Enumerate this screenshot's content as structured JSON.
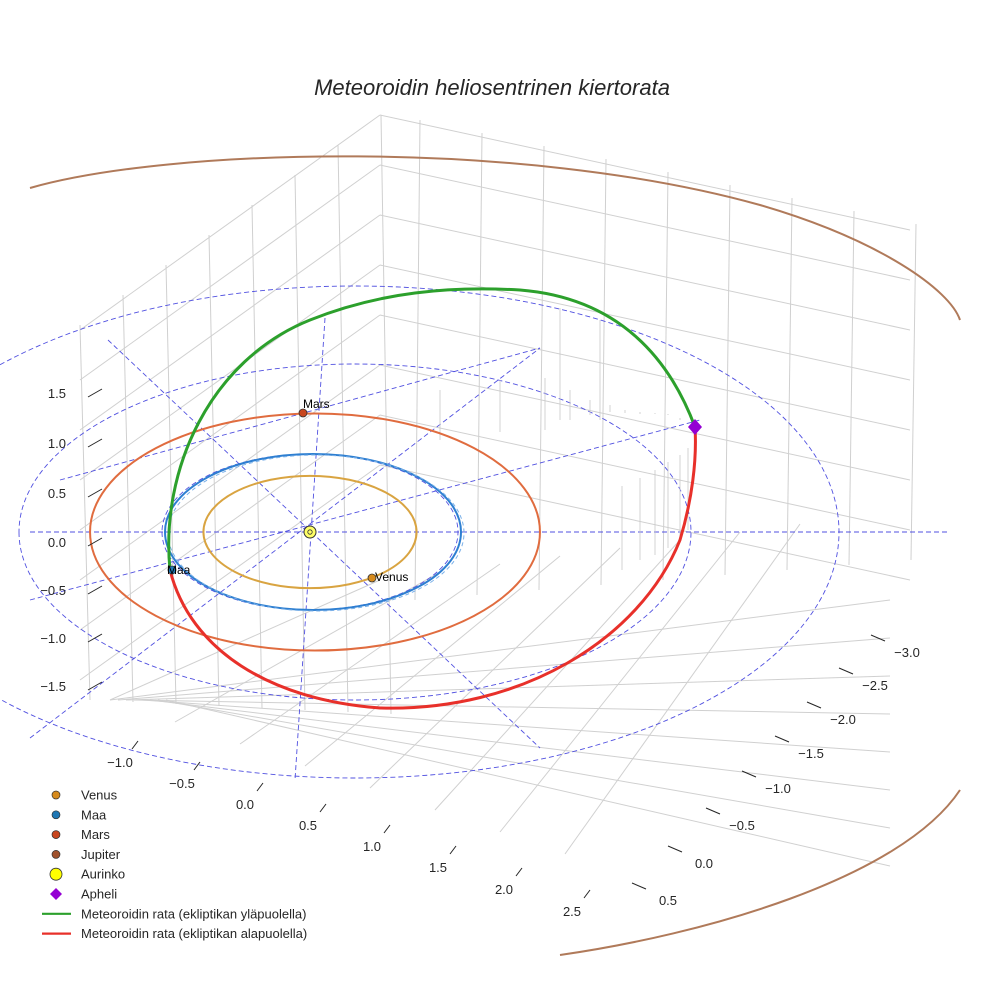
{
  "chart_data": {
    "type": "line",
    "title": "Meteoroidin heliosentrinen kiertorata",
    "xlabel": "",
    "ylabel": "",
    "zlabel": "",
    "xlim": [
      -1.2,
      2.7
    ],
    "ylim": [
      -3.2,
      0.6
    ],
    "zlim": [
      -1.7,
      1.7
    ],
    "x_ticks": [
      "−1.0",
      "−0.5",
      "0.0",
      "0.5",
      "1.0",
      "1.5",
      "2.0",
      "2.5"
    ],
    "y_ticks": [
      "−3.0",
      "−2.5",
      "−2.0",
      "−1.5",
      "−1.0",
      "−0.5",
      "0.0",
      "0.5"
    ],
    "z_ticks": [
      "1.5",
      "1.0",
      "0.5",
      "0.0",
      "−0.5",
      "−1.0",
      "−1.5"
    ],
    "grid": true,
    "legend_position": "bottom-left",
    "series": [
      {
        "name": "Venus",
        "kind": "planet-orbit",
        "radius_au": 0.72,
        "color": "#d9a441",
        "point_label": "Venus"
      },
      {
        "name": "Maa",
        "kind": "planet-orbit",
        "radius_au": 1.0,
        "color": "#2e7fd1",
        "point_label": "Maa"
      },
      {
        "name": "Mars",
        "kind": "planet-orbit",
        "radius_au": 1.52,
        "color": "#e06c3f",
        "point_label": "Mars"
      },
      {
        "name": "Jupiter",
        "kind": "planet-orbit",
        "radius_au": 5.2,
        "color": "#b07a5a"
      },
      {
        "name": "Aurinko",
        "kind": "sun",
        "color": "#ffff00"
      },
      {
        "name": "Apheli",
        "kind": "marker",
        "color": "#9400d3"
      },
      {
        "name": "Meteoroidin rata (ekliptikan yläpuolella)",
        "kind": "orbit-above",
        "color": "#2ca02c"
      },
      {
        "name": "Meteoroidin rata (ekliptikan alapuolella)",
        "kind": "orbit-below",
        "color": "#e8302a"
      }
    ]
  },
  "legend": {
    "items": [
      {
        "label": "Venus",
        "marker": "circle",
        "color": "#d68a1c"
      },
      {
        "label": "Maa",
        "marker": "circle",
        "color": "#1f77b4"
      },
      {
        "label": "Mars",
        "marker": "circle",
        "color": "#c8461f"
      },
      {
        "label": "Jupiter",
        "marker": "circle",
        "color": "#a0522d"
      },
      {
        "label": "Aurinko",
        "marker": "sun",
        "color": "#ffff00"
      },
      {
        "label": "Apheli",
        "marker": "diamond",
        "color": "#9400d3"
      },
      {
        "label": "Meteoroidin rata (ekliptikan yläpuolella)",
        "marker": "line",
        "color": "#2ca02c"
      },
      {
        "label": "Meteoroidin rata (ekliptikan alapuolella)",
        "marker": "line",
        "color": "#e8302a"
      }
    ]
  },
  "labels": {
    "mars": "Mars",
    "maa": "Maa",
    "venus": "Venus"
  }
}
